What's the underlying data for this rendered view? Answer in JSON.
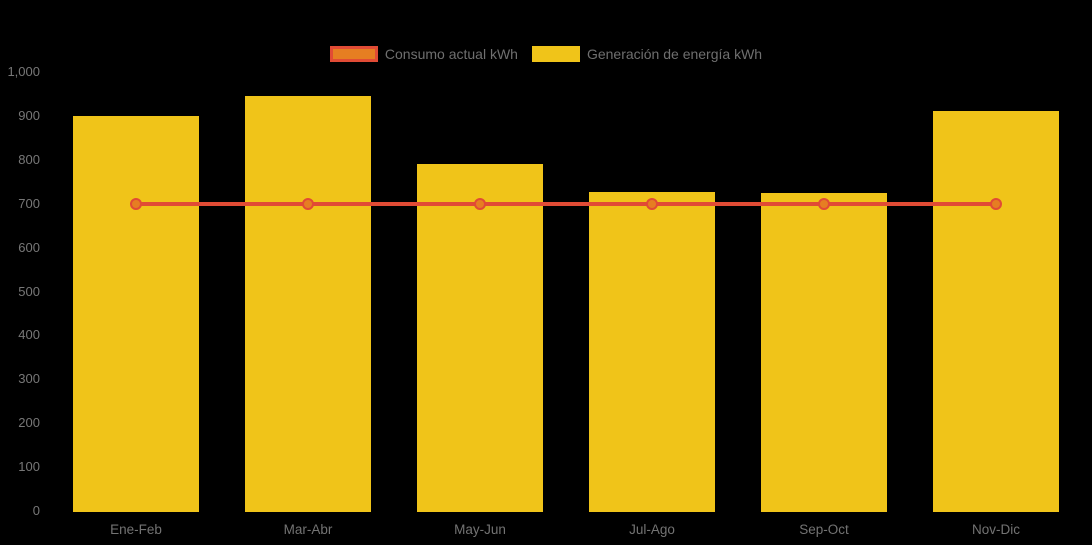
{
  "legend": {
    "items": [
      {
        "label": "Consumo actual kWh",
        "swatch_fill": "#E67E22",
        "swatch_border": "#E14B35"
      },
      {
        "label": "Generación de energía kWh",
        "swatch_fill": "#F0C419",
        "swatch_border": "#F0C419"
      }
    ]
  },
  "chart_data": {
    "type": "bar",
    "title": "",
    "xlabel": "",
    "ylabel": "",
    "categories": [
      "Ene-Feb",
      "Mar-Abr",
      "May-Jun",
      "Jul-Ago",
      "Sep-Oct",
      "Nov-Dic"
    ],
    "series": [
      {
        "name": "Consumo actual kWh",
        "type": "line",
        "values": [
          700,
          700,
          700,
          700,
          700,
          700
        ],
        "color": "#E14B35",
        "marker_fill": "#E67E22",
        "marker_border": "#E14B35"
      },
      {
        "name": "Generación de energía kWh",
        "type": "bar",
        "values": [
          900,
          945,
          790,
          726,
          724,
          911
        ],
        "color": "#F0C419"
      }
    ],
    "ylim": [
      0,
      1000
    ],
    "ytick_step": 100,
    "ytick_labels": [
      "0",
      "100",
      "200",
      "300",
      "400",
      "500",
      "600",
      "700",
      "800",
      "900",
      "1,000"
    ],
    "grid": false,
    "legend_position": "top-center",
    "background": "#000000",
    "axis_label_color": "#777777"
  }
}
